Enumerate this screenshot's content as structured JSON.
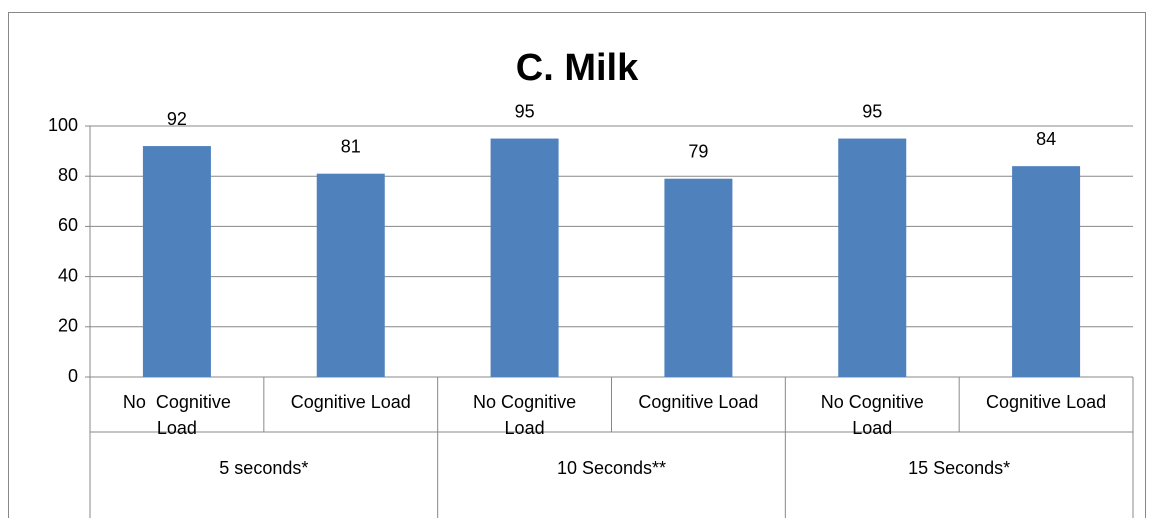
{
  "chart_data": {
    "type": "bar",
    "title": "C. Milk",
    "categories": [
      "No  Cognitive Load",
      "Cognitive Load",
      "No Cognitive Load",
      "Cognitive Load",
      "No Cognitive Load",
      "Cognitive Load"
    ],
    "groups": [
      "5 seconds*",
      "10 Seconds**",
      "15 Seconds*"
    ],
    "values": [
      92,
      81,
      95,
      79,
      95,
      84
    ],
    "color": "#4f81bd",
    "ylim": [
      0,
      100
    ],
    "yticks": [
      0,
      20,
      40,
      60,
      80,
      100
    ],
    "grid": true
  }
}
